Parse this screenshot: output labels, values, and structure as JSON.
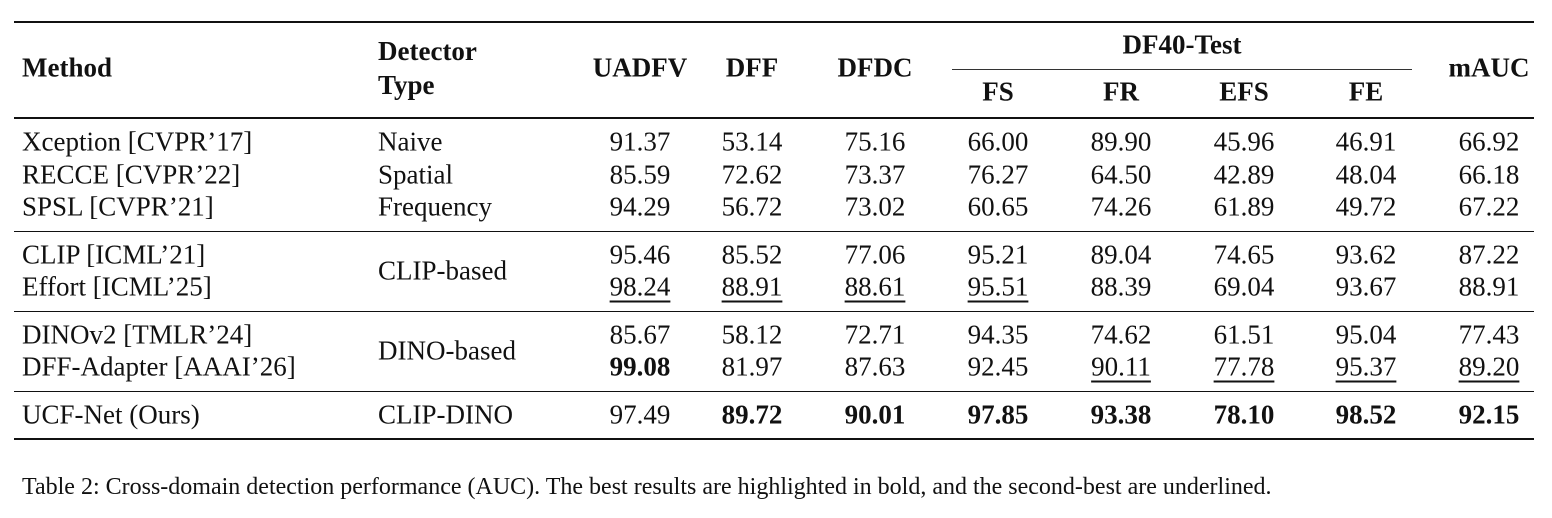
{
  "table": {
    "header": {
      "method": "Method",
      "detector_type": "Detector Type",
      "columns": [
        "UADFV",
        "DFF",
        "DFDC"
      ],
      "group": {
        "label": "DF40-Test",
        "columns": [
          "FS",
          "FR",
          "EFS",
          "FE"
        ]
      },
      "last": "mAUC"
    },
    "groups": [
      {
        "rows": [
          {
            "method": "Xception [CVPR’17]",
            "type": "Naive",
            "values": [
              "91.37",
              "53.14",
              "75.16",
              "66.00",
              "89.90",
              "45.96",
              "46.91",
              "66.92"
            ]
          },
          {
            "method": "RECCE [CVPR’22]",
            "type": "Spatial",
            "values": [
              "85.59",
              "72.62",
              "73.37",
              "76.27",
              "64.50",
              "42.89",
              "48.04",
              "66.18"
            ]
          },
          {
            "method": "SPSL [CVPR’21]",
            "type": "Frequency",
            "values": [
              "94.29",
              "56.72",
              "73.02",
              "60.65",
              "74.26",
              "61.89",
              "49.72",
              "67.22"
            ]
          }
        ]
      },
      {
        "type": "CLIP-based",
        "rows": [
          {
            "method": "CLIP [ICML’21]",
            "values": [
              "95.46",
              "85.52",
              "77.06",
              "95.21",
              "89.04",
              "74.65",
              "93.62",
              "87.22"
            ]
          },
          {
            "method": "Effort [ICML’25]",
            "values": [
              "98.24",
              "88.91",
              "88.61",
              "95.51",
              "88.39",
              "69.04",
              "93.67",
              "88.91"
            ],
            "underline": [
              0,
              1,
              2,
              3
            ]
          }
        ]
      },
      {
        "type": "DINO-based",
        "rows": [
          {
            "method": "DINOv2 [TMLR’24]",
            "values": [
              "85.67",
              "58.12",
              "72.71",
              "94.35",
              "74.62",
              "61.51",
              "95.04",
              "77.43"
            ]
          },
          {
            "method": "DFF-Adapter [AAAI’26]",
            "values": [
              "99.08",
              "81.97",
              "87.63",
              "92.45",
              "90.11",
              "77.78",
              "95.37",
              "89.20"
            ],
            "bold": [
              0
            ],
            "underline": [
              4,
              5,
              6,
              7
            ]
          }
        ]
      },
      {
        "rows": [
          {
            "method": "UCF-Net (Ours)",
            "type": "CLIP-DINO",
            "values": [
              "97.49",
              "89.72",
              "90.01",
              "97.85",
              "93.38",
              "78.10",
              "98.52",
              "92.15"
            ],
            "bold": [
              1,
              2,
              3,
              4,
              5,
              6,
              7
            ]
          }
        ]
      }
    ],
    "caption": "Table 2: Cross-domain detection performance (AUC). The best results are highlighted in bold, and the second-best are underlined."
  }
}
